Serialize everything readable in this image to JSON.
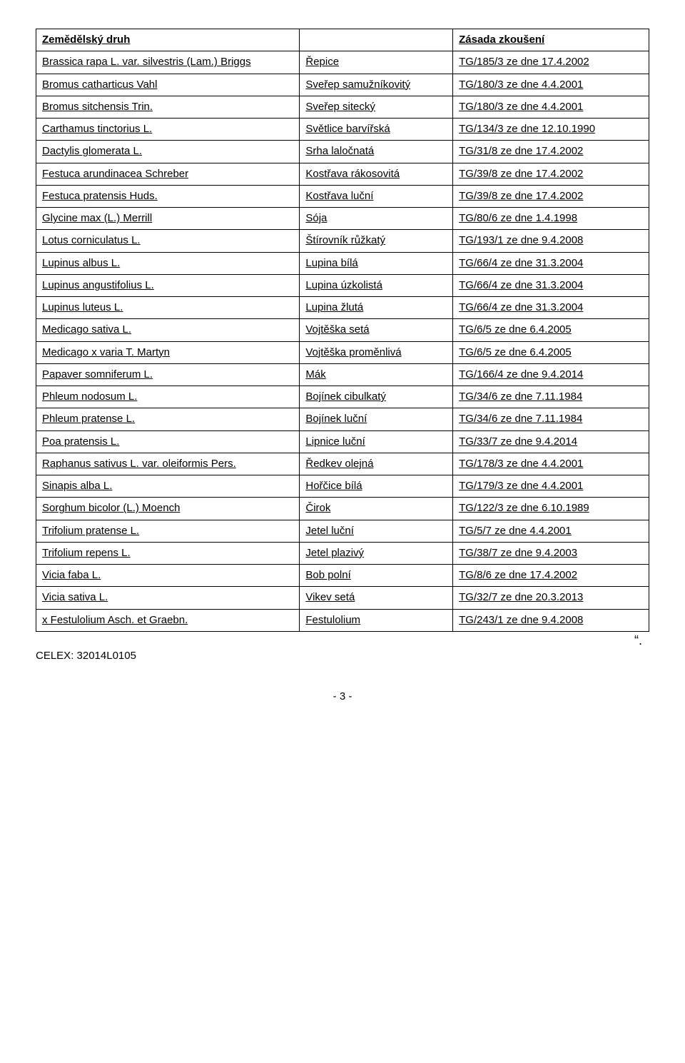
{
  "header": {
    "col1": "Zemědělský druh",
    "col3": "Zásada zkoušení"
  },
  "rows": [
    {
      "c1": "Brassica rapa L. var. silvestris (Lam.) Briggs",
      "c2": "Řepice",
      "c3": "TG/185/3 ze dne 17.4.2002"
    },
    {
      "c1": "Bromus catharticus Vahl",
      "c2": "Sveřep samužníkovitý",
      "c3": "TG/180/3 ze dne 4.4.2001"
    },
    {
      "c1": "Bromus sitchensis Trin.",
      "c2": "Sveřep sitecký",
      "c3": "TG/180/3 ze dne 4.4.2001"
    },
    {
      "c1": "Carthamus tinctorius L.",
      "c2": "Světlice barvířská",
      "c3": "TG/134/3 ze dne 12.10.1990"
    },
    {
      "c1": "Dactylis glomerata L.",
      "c2": "Srha laločnatá",
      "c3": "TG/31/8 ze dne 17.4.2002"
    },
    {
      "c1": "Festuca arundinacea Schreber",
      "c2": "Kostřava rákosovitá",
      "c3": "TG/39/8 ze dne 17.4.2002"
    },
    {
      "c1": "Festuca pratensis Huds.",
      "c2": "Kostřava luční",
      "c3": "TG/39/8 ze dne 17.4.2002"
    },
    {
      "c1": "Glycine max (L.) Merrill",
      "c2": "Sója",
      "c3": "TG/80/6 ze dne 1.4.1998"
    },
    {
      "c1": "Lotus corniculatus L.",
      "c2": "Štírovník růžkatý",
      "c3": "TG/193/1 ze dne 9.4.2008"
    },
    {
      "c1": "Lupinus albus L.",
      "c2": "Lupina bílá",
      "c3": "TG/66/4 ze dne 31.3.2004"
    },
    {
      "c1": "Lupinus angustifolius L.",
      "c2": "Lupina úzkolistá",
      "c3": "TG/66/4 ze dne 31.3.2004"
    },
    {
      "c1": "Lupinus luteus L.",
      "c2": "Lupina žlutá",
      "c3": "TG/66/4 ze dne 31.3.2004"
    },
    {
      "c1": "Medicago sativa L.",
      "c2": "Vojtěška setá",
      "c3": "TG/6/5 ze dne 6.4.2005"
    },
    {
      "c1": "Medicago x varia T. Martyn",
      "c2": "Vojtěška proměnlivá",
      "c3": "TG/6/5 ze dne 6.4.2005"
    },
    {
      "c1": "Papaver somniferum L.",
      "c2": "Mák",
      "c3": "TG/166/4 ze dne 9.4.2014"
    },
    {
      "c1": "Phleum nodosum L.",
      "c2": "Bojínek cibulkatý",
      "c3": "TG/34/6 ze dne 7.11.1984"
    },
    {
      "c1": "Phleum pratense L.",
      "c2": "Bojínek luční",
      "c3": "TG/34/6 ze dne 7.11.1984"
    },
    {
      "c1": "Poa pratensis L.",
      "c2": "Lipnice luční",
      "c3": "TG/33/7 ze dne 9.4.2014"
    },
    {
      "c1": "Raphanus sativus L. var. oleiformis Pers.",
      "c2": "Ředkev olejná",
      "c3": "TG/178/3 ze dne 4.4.2001"
    },
    {
      "c1": "Sinapis alba L.",
      "c2": "Hořčice bílá",
      "c3": "TG/179/3 ze dne 4.4.2001"
    },
    {
      "c1": "Sorghum bicolor (L.) Moench",
      "c2": "Čirok",
      "c3": "TG/122/3 ze dne 6.10.1989"
    },
    {
      "c1": "Trifolium pratense L.",
      "c2": "Jetel luční",
      "c3": "TG/5/7 ze dne 4.4.2001"
    },
    {
      "c1": "Trifolium repens L.",
      "c2": "Jetel plazivý",
      "c3": "TG/38/7 ze dne 9.4.2003"
    },
    {
      "c1": "Vicia faba L.",
      "c2": "Bob polní",
      "c3": "TG/8/6 ze dne 17.4.2002"
    },
    {
      "c1": "Vicia sativa L.",
      "c2": "Vikev setá",
      "c3": "TG/32/7 ze dne 20.3.2013"
    },
    {
      "c1": "x Festulolium Asch. et Graebn.",
      "c2": "Festulolium",
      "c3": "TG/243/1 ze dne 9.4.2008"
    }
  ],
  "celex": "CELEX: 32014L0105",
  "quote_end": "“.",
  "page_num": "- 3 -",
  "style": {
    "font_family": "Arial",
    "font_size_pt": 11,
    "border_color": "#000000",
    "background_color": "#ffffff",
    "text_color": "#000000"
  }
}
